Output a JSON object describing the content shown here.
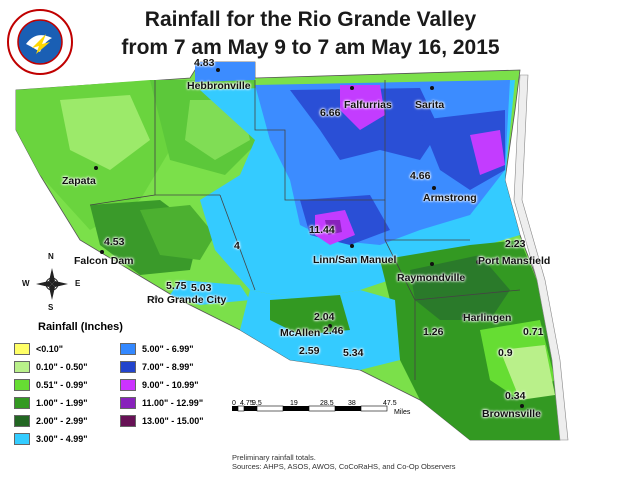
{
  "title": {
    "line1": "Rainfall for the Rio Grande Valley",
    "line2": "from 7 am May 9 to 7 am May 16, 2015"
  },
  "logo": {
    "text": "NATIONAL WEATHER SERVICE"
  },
  "places": [
    {
      "id": "hebbronville",
      "name": "Hebbronville"
    },
    {
      "id": "falfurrias",
      "name": "Falfurrias"
    },
    {
      "id": "sarita",
      "name": "Sarita"
    },
    {
      "id": "zapata",
      "name": "Zapata"
    },
    {
      "id": "armstrong",
      "name": "Armstrong"
    },
    {
      "id": "falcon-dam",
      "name": "Falcon Dam"
    },
    {
      "id": "linn-san-manuel",
      "name": "Linn/San Manuel"
    },
    {
      "id": "port-mansfield",
      "name": "Port Mansfield"
    },
    {
      "id": "raymondville",
      "name": "Raymondville"
    },
    {
      "id": "rio-grande-city",
      "name": "Rio Grande City"
    },
    {
      "id": "harlingen",
      "name": "Harlingen"
    },
    {
      "id": "mcallen",
      "name": "McAllen"
    },
    {
      "id": "brownsville",
      "name": "Brownsville"
    }
  ],
  "rainfall_values": [
    {
      "id": "v-hebbronville",
      "value": "4.83"
    },
    {
      "id": "v-falfurrias",
      "value": "6.66"
    },
    {
      "id": "v-armstrong",
      "value": "4.66"
    },
    {
      "id": "v-falcon",
      "value": "4.53"
    },
    {
      "id": "v-center4",
      "value": "4"
    },
    {
      "id": "v-linn",
      "value": "11.44"
    },
    {
      "id": "v-mansfield",
      "value": "2.23"
    },
    {
      "id": "v-rgc1",
      "value": "5.75"
    },
    {
      "id": "v-rgc2",
      "value": "5.03"
    },
    {
      "id": "v-mcallen1",
      "value": "2.04"
    },
    {
      "id": "v-mcallen2",
      "value": "2.46"
    },
    {
      "id": "v-mcallen3",
      "value": "2.59"
    },
    {
      "id": "v-mcallen4",
      "value": "5.34"
    },
    {
      "id": "v-harlingen",
      "value": "1.26"
    },
    {
      "id": "v-east1",
      "value": "0.71"
    },
    {
      "id": "v-east2",
      "value": "0.9"
    },
    {
      "id": "v-brownsville",
      "value": "0.34"
    }
  ],
  "legend": {
    "title": "Rainfall (Inches)",
    "items": [
      {
        "label": "<0.10\"",
        "color": "#ffff66"
      },
      {
        "label": "0.10\" - 0.50\"",
        "color": "#b9f08a"
      },
      {
        "label": "0.51\" - 0.99\"",
        "color": "#66dd33"
      },
      {
        "label": "1.00\" - 1.99\"",
        "color": "#339922"
      },
      {
        "label": "2.00\" - 2.99\"",
        "color": "#226622"
      },
      {
        "label": "3.00\" - 4.99\"",
        "color": "#33ccff"
      },
      {
        "label": "5.00\" - 6.99\"",
        "color": "#3388ff"
      },
      {
        "label": "7.00\" - 8.99\"",
        "color": "#2244cc"
      },
      {
        "label": "9.00\" - 10.99\"",
        "color": "#cc33ff"
      },
      {
        "label": "11.00\" - 12.99\"",
        "color": "#8822bb"
      },
      {
        "label": "13.00\" - 15.00\"",
        "color": "#661155"
      }
    ]
  },
  "compass": {
    "n": "N",
    "s": "S",
    "e": "E",
    "w": "W"
  },
  "scale": {
    "ticks": [
      "0",
      "4.75",
      "9.5",
      "19",
      "28.5",
      "38",
      "47.5"
    ],
    "unit": "Miles"
  },
  "footer": {
    "line1": "Preliminary rainfall totals.",
    "line2": "Sources: AHPS, ASOS, AWOS, CoCoRaHS, and Co-Op Observers"
  },
  "colors": {
    "land_bg": "#d8dee8",
    "coast_water": "#e8eef4"
  }
}
